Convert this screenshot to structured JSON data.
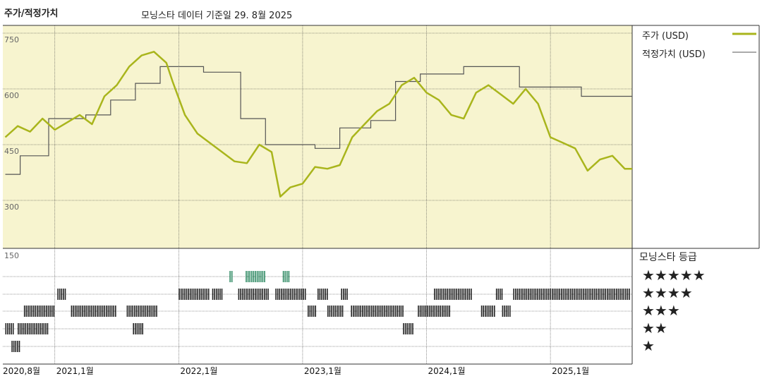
{
  "header": {
    "title": "주가/적정가치",
    "subtitle": "모닝스타 데이터 기준일 29. 8월 2025"
  },
  "legend": {
    "price_label": "주가 (USD)",
    "fair_label": "적정가치 (USD)",
    "rating_title": "모닝스타 등급",
    "stars": [
      "★★★★★",
      "★★★★",
      "★★★",
      "★★",
      "★"
    ]
  },
  "colors": {
    "price": "#a9b51c",
    "fair": "#555555",
    "upper_bg": "#f7f4cf",
    "five_star": "#2f8a63",
    "bars": "#222222"
  },
  "chart_data": [
    {
      "type": "line",
      "x_start": "2020-08",
      "x_end": "2025-08",
      "x_tick_labels": [
        "2020,8월",
        "2021,1월",
        "2022,1월",
        "2023,1월",
        "2024,1월",
        "2025,1월"
      ],
      "y_tick_labels": [
        "750",
        "600",
        "450",
        "300"
      ],
      "ylim": [
        150,
        750
      ],
      "series": [
        {
          "name": "주가 (USD)",
          "x": [
            2020.6,
            2020.7,
            2020.8,
            2020.9,
            2021.0,
            2021.1,
            2021.2,
            2021.3,
            2021.4,
            2021.5,
            2021.6,
            2021.7,
            2021.8,
            2021.9,
            2021.95,
            2022.05,
            2022.15,
            2022.25,
            2022.35,
            2022.45,
            2022.55,
            2022.65,
            2022.75,
            2022.82,
            2022.9,
            2023.0,
            2023.1,
            2023.2,
            2023.3,
            2023.4,
            2023.5,
            2023.6,
            2023.7,
            2023.8,
            2023.9,
            2024.0,
            2024.1,
            2024.2,
            2024.3,
            2024.4,
            2024.5,
            2024.6,
            2024.7,
            2024.8,
            2024.9,
            2025.0,
            2025.1,
            2025.2,
            2025.3,
            2025.4,
            2025.5,
            2025.6,
            2025.66
          ],
          "values": [
            470,
            500,
            485,
            520,
            490,
            510,
            530,
            505,
            580,
            610,
            660,
            690,
            700,
            670,
            620,
            530,
            480,
            455,
            430,
            405,
            400,
            450,
            430,
            310,
            335,
            345,
            390,
            385,
            395,
            470,
            505,
            540,
            560,
            610,
            630,
            590,
            570,
            530,
            520,
            590,
            610,
            585,
            560,
            600,
            560,
            470,
            455,
            440,
            380,
            410,
            420,
            385,
            385
          ]
        },
        {
          "name": "적정가치 (USD)",
          "x": [
            2020.6,
            2020.72,
            2020.72,
            2020.95,
            2020.95,
            2021.25,
            2021.25,
            2021.45,
            2021.45,
            2021.65,
            2021.65,
            2021.85,
            2021.85,
            2022.2,
            2022.2,
            2022.5,
            2022.5,
            2022.7,
            2022.7,
            2023.1,
            2023.1,
            2023.3,
            2023.3,
            2023.55,
            2023.55,
            2023.75,
            2023.75,
            2023.95,
            2023.95,
            2024.3,
            2024.3,
            2024.75,
            2024.75,
            2025.25,
            2025.25,
            2025.66
          ],
          "values": [
            370,
            370,
            420,
            420,
            520,
            520,
            530,
            530,
            570,
            570,
            615,
            615,
            660,
            660,
            645,
            645,
            520,
            520,
            450,
            450,
            440,
            440,
            495,
            495,
            515,
            515,
            620,
            620,
            640,
            640,
            660,
            660,
            605,
            605,
            580,
            580
          ]
        }
      ]
    },
    {
      "type": "bar",
      "title": "모닝스타 등급",
      "y_tick_labels": [
        "150"
      ],
      "categories": [
        "5",
        "4",
        "3",
        "2",
        "1"
      ],
      "series": [
        {
          "name": "★★★★★",
          "segments": [
            [
              2022.41,
              2022.43
            ],
            [
              2022.54,
              2022.69
            ],
            [
              2022.84,
              2022.89
            ]
          ]
        },
        {
          "name": "★★★★",
          "segments": [
            [
              2021.02,
              2021.08
            ],
            [
              2022.0,
              2022.24
            ],
            [
              2022.27,
              2022.35
            ],
            [
              2022.48,
              2022.72
            ],
            [
              2022.78,
              2023.02
            ],
            [
              2023.12,
              2023.2
            ],
            [
              2023.31,
              2023.36
            ],
            [
              2024.06,
              2024.36
            ],
            [
              2024.56,
              2024.61
            ],
            [
              2024.7,
              2025.64
            ]
          ]
        },
        {
          "name": "★★★",
          "segments": [
            [
              2020.75,
              2020.99
            ],
            [
              2021.13,
              2021.49
            ],
            [
              2021.58,
              2021.83
            ],
            [
              2023.04,
              2023.1
            ],
            [
              2023.2,
              2023.33
            ],
            [
              2023.39,
              2023.81
            ],
            [
              2023.93,
              2024.19
            ],
            [
              2024.44,
              2024.55
            ],
            [
              2024.61,
              2024.68
            ]
          ]
        },
        {
          "name": "★★",
          "segments": [
            [
              2020.6,
              2020.66
            ],
            [
              2020.7,
              2020.94
            ],
            [
              2021.63,
              2021.71
            ],
            [
              2023.81,
              2023.89
            ]
          ]
        },
        {
          "name": "★",
          "segments": [
            [
              2020.65,
              2020.72
            ]
          ]
        }
      ]
    }
  ]
}
